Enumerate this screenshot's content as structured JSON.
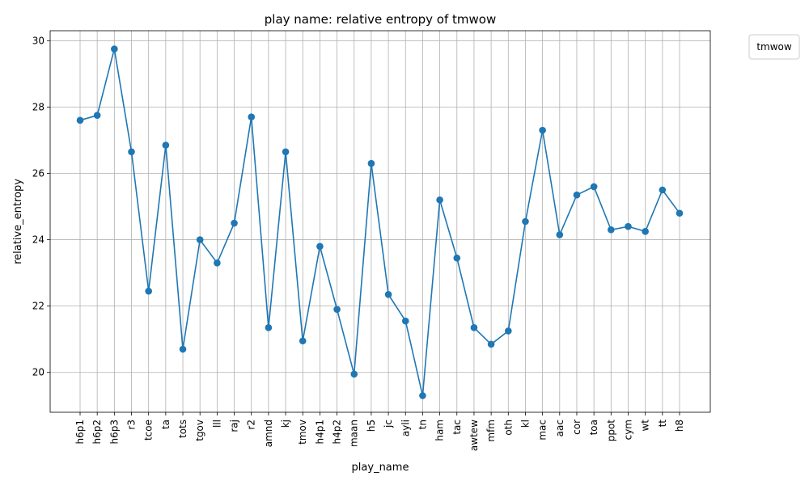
{
  "chart_data": {
    "type": "line",
    "title": "play name: relative entropy of tmwow",
    "xlabel": "play_name",
    "ylabel": "relative_entropy",
    "legend_title": "tmwow",
    "legend_placement": "top-right outside",
    "grid": true,
    "ylim": [
      18.8,
      30.3
    ],
    "yticks": [
      20,
      22,
      24,
      26,
      28,
      30
    ],
    "color": "#1f77b4",
    "categories": [
      "h6p1",
      "h6p2",
      "h6p3",
      "r3",
      "tcoe",
      "ta",
      "tots",
      "tgov",
      "lll",
      "raj",
      "r2",
      "amnd",
      "kj",
      "tmov",
      "h4p1",
      "h4p2",
      "maan",
      "h5",
      "jc",
      "ayli",
      "tn",
      "ham",
      "tac",
      "awtew",
      "mfm",
      "oth",
      "kl",
      "mac",
      "aac",
      "cor",
      "toa",
      "ppot",
      "cym",
      "wt",
      "tt",
      "h8"
    ],
    "values": [
      27.6,
      27.75,
      29.75,
      26.65,
      22.45,
      26.85,
      20.7,
      24.0,
      23.3,
      24.5,
      27.7,
      21.35,
      26.65,
      20.95,
      23.8,
      21.9,
      19.95,
      26.3,
      22.35,
      21.55,
      19.3,
      25.2,
      23.45,
      21.35,
      20.85,
      21.25,
      24.55,
      27.3,
      24.15,
      25.35,
      25.6,
      24.3,
      24.4,
      24.25,
      25.5,
      24.8
    ]
  }
}
